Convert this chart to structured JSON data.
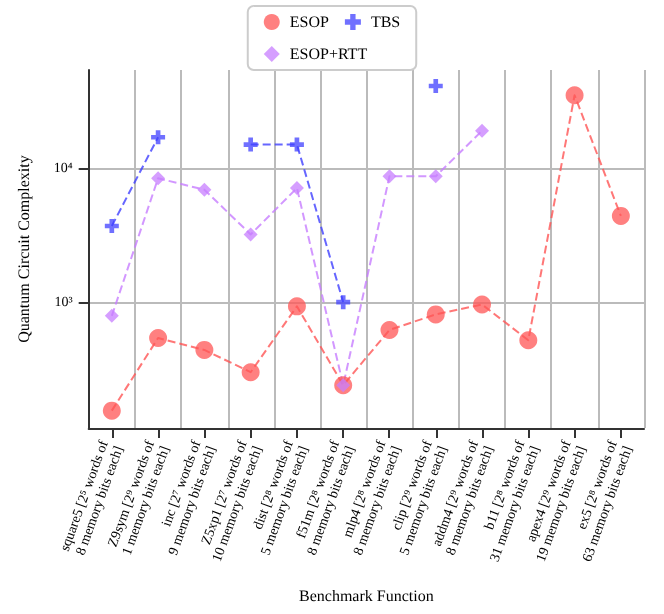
{
  "chart_data": {
    "type": "line",
    "xlabel": "Benchmark Function",
    "ylabel": "Quantum Circuit Complexity",
    "categories": [
      "square5 [2⁵ words of 8 memory bits each]",
      "Z9sym [2⁹ words of 1 memory bits each]",
      "inc [2⁷ words of 9 memory bits each]",
      "Z5xp1 [2⁷ words of 10 memory bits each]",
      "dist [2⁸ words of 5 memory bits each]",
      "f51m [2⁸ words of 8 memory bits each]",
      "mlp4 [2⁸ words of 8 memory bits each]",
      "clip [2⁹ words of 5 memory bits each]",
      "addm4 [2⁹ words of 8 memory bits each]",
      "b11 [2⁸ words of 31 memory bits each]",
      "apex4 [2⁹ words of 19 memory bits each]",
      "ex5 [2⁸ words of 63 memory bits each]"
    ],
    "series": [
      {
        "name": "ESOP",
        "color": "#ff5555",
        "marker": "circle",
        "values": [
          155,
          540,
          440,
          300,
          930,
          240,
          620,
          810,
          960,
          520,
          35000,
          4400
        ]
      },
      {
        "name": "ESOP+RTT",
        "color": "#c77dff",
        "marker": "diamond",
        "values": [
          790,
          8400,
          6900,
          3200,
          7100,
          240,
          8700,
          8700,
          19000,
          null,
          null,
          null
        ]
      },
      {
        "name": "TBS",
        "color": "#4040ff",
        "marker": "cross",
        "values": [
          3700,
          17000,
          null,
          15000,
          15000,
          1000,
          null,
          41000,
          null,
          null,
          null,
          null
        ]
      }
    ],
    "log": "y",
    "ylim": [
      115,
      54000
    ],
    "yticks": [
      {
        "value": 1000,
        "label": "10³"
      },
      {
        "value": 10000,
        "label": "10⁴"
      }
    ],
    "grid": true,
    "legend": "top",
    "line_style": "dashed"
  }
}
